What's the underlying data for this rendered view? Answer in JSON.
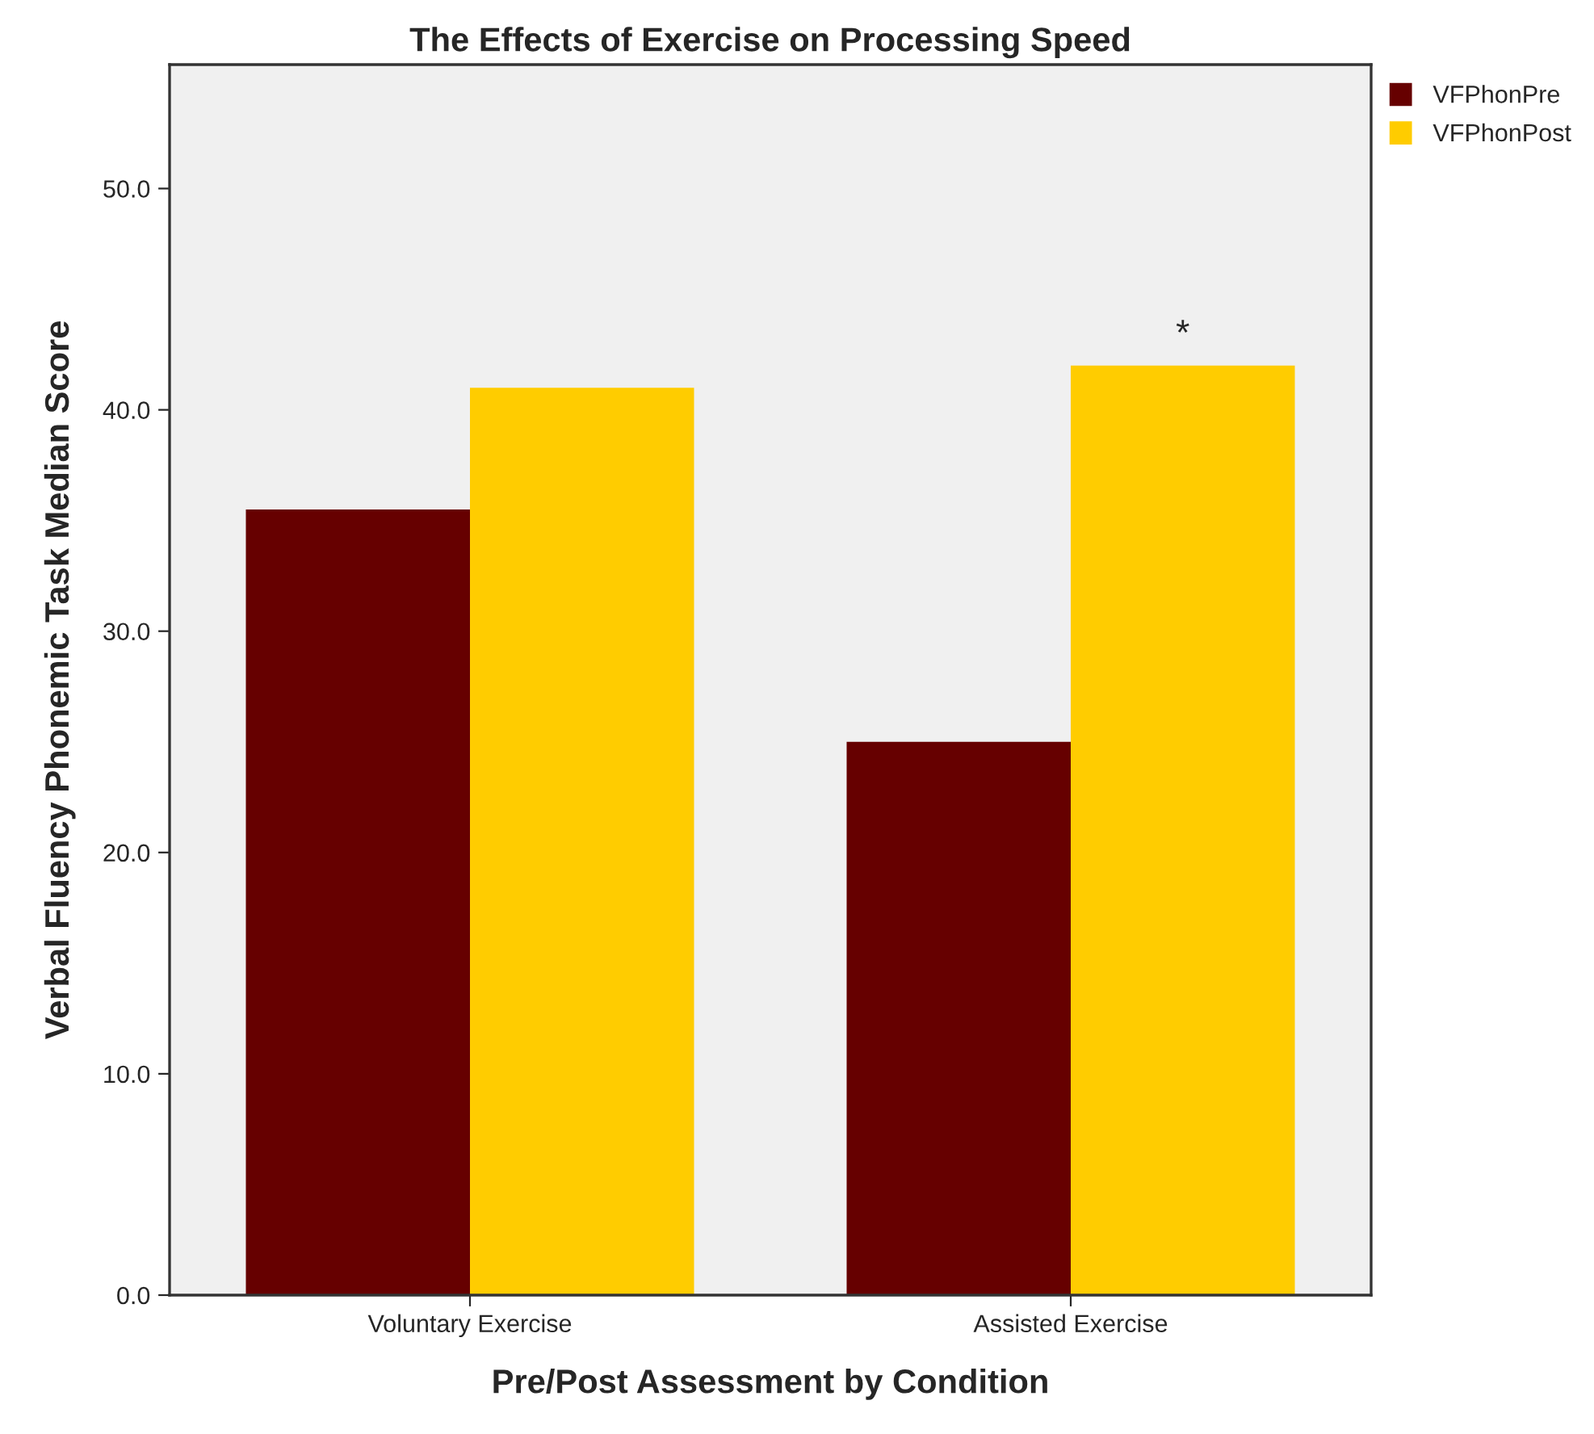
{
  "chart_data": {
    "type": "bar",
    "title": "The Effects of Exercise on Processing Speed",
    "xlabel": "Pre/Post Assessment by Condition",
    "ylabel": "Verbal Fluency Phonemic Task Median Score",
    "categories": [
      "Voluntary Exercise",
      "Assisted Exercise"
    ],
    "series": [
      {
        "name": "VFPhonPre",
        "color": "#660000",
        "values": [
          35.5,
          25.0
        ]
      },
      {
        "name": "VFPhonPost",
        "color": "#ffcc00",
        "values": [
          41.0,
          42.0
        ]
      }
    ],
    "ylim": [
      0,
      55.6
    ],
    "yticks": [
      {
        "value": 0,
        "label": "0.0"
      },
      {
        "value": 10,
        "label": "10.0"
      },
      {
        "value": 20,
        "label": "20.0"
      },
      {
        "value": 30,
        "label": "30.0"
      },
      {
        "value": 40,
        "label": "40.0"
      },
      {
        "value": 50,
        "label": "50.0"
      }
    ],
    "annotations": [
      "*"
    ],
    "grid": false,
    "legend": "top right"
  }
}
